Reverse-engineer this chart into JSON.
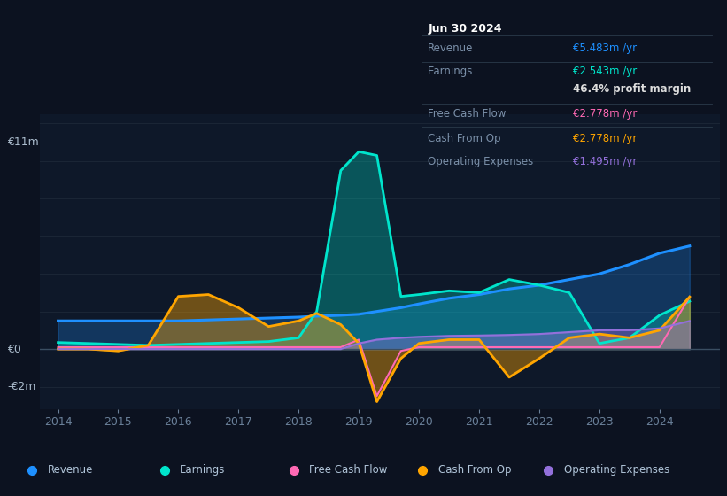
{
  "bg_color": "#0c1220",
  "plot_bg_color": "#0e1829",
  "grid_color": "#1a2535",
  "years": [
    2014,
    2014.5,
    2015,
    2015.5,
    2016,
    2016.5,
    2017,
    2017.5,
    2018,
    2018.3,
    2018.7,
    2019,
    2019.3,
    2019.7,
    2020,
    2020.5,
    2021,
    2021.5,
    2022,
    2022.5,
    2023,
    2023.5,
    2024,
    2024.5
  ],
  "revenue": [
    1.5,
    1.5,
    1.5,
    1.5,
    1.5,
    1.55,
    1.6,
    1.65,
    1.7,
    1.75,
    1.8,
    1.85,
    2.0,
    2.2,
    2.4,
    2.7,
    2.9,
    3.2,
    3.4,
    3.7,
    4.0,
    4.5,
    5.1,
    5.483
  ],
  "earnings": [
    0.35,
    0.3,
    0.25,
    0.2,
    0.25,
    0.3,
    0.35,
    0.4,
    0.6,
    2.0,
    9.5,
    10.5,
    10.3,
    2.8,
    2.9,
    3.1,
    3.0,
    3.7,
    3.4,
    3.0,
    0.3,
    0.6,
    1.8,
    2.543
  ],
  "free_cash_flow": [
    0.1,
    0.1,
    0.1,
    0.1,
    0.1,
    0.1,
    0.1,
    0.1,
    0.1,
    0.1,
    0.1,
    0.5,
    -2.5,
    -0.1,
    0.1,
    0.1,
    0.1,
    0.1,
    0.1,
    0.1,
    0.1,
    0.1,
    0.1,
    2.778
  ],
  "cash_from_op": [
    0.0,
    0.0,
    -0.1,
    0.2,
    2.8,
    2.9,
    2.2,
    1.2,
    1.5,
    1.9,
    1.3,
    0.3,
    -2.8,
    -0.5,
    0.3,
    0.5,
    0.5,
    -1.5,
    -0.5,
    0.6,
    0.8,
    0.6,
    1.0,
    2.778
  ],
  "op_expenses": [
    0.0,
    0.0,
    0.0,
    0.0,
    0.0,
    0.0,
    0.0,
    0.0,
    0.0,
    0.0,
    0.0,
    0.3,
    0.5,
    0.6,
    0.65,
    0.7,
    0.72,
    0.75,
    0.8,
    0.9,
    1.0,
    1.0,
    1.1,
    1.495
  ],
  "revenue_color": "#1e90ff",
  "earnings_color": "#00e5cc",
  "fcf_color": "#ff69b4",
  "cfop_color": "#ffa500",
  "opex_color": "#9370db",
  "ylim_min": -3.2,
  "ylim_max": 12.5,
  "xlim_min": 2013.7,
  "xlim_max": 2025.0,
  "xticks": [
    2014,
    2015,
    2016,
    2017,
    2018,
    2019,
    2020,
    2021,
    2022,
    2023,
    2024
  ],
  "y_label_11m": "€11m",
  "y_label_0": "€0",
  "y_label_neg2m": "-€2m",
  "y_val_11": 11,
  "y_val_0": 0,
  "y_val_neg2": -2,
  "title_date": "Jun 30 2024",
  "table_rows": [
    {
      "label": "Revenue",
      "value": "€5.483m /yr",
      "vcolor": "#1e90ff"
    },
    {
      "label": "Earnings",
      "value": "€2.543m /yr",
      "vcolor": "#00e5cc"
    },
    {
      "label": "",
      "value": "46.4% profit margin",
      "vcolor": "#dddddd"
    },
    {
      "label": "Free Cash Flow",
      "value": "€2.778m /yr",
      "vcolor": "#ff69b4"
    },
    {
      "label": "Cash From Op",
      "value": "€2.778m /yr",
      "vcolor": "#ffa500"
    },
    {
      "label": "Operating Expenses",
      "value": "€1.495m /yr",
      "vcolor": "#9370db"
    }
  ],
  "legend": [
    {
      "label": "Revenue",
      "color": "#1e90ff"
    },
    {
      "label": "Earnings",
      "color": "#00e5cc"
    },
    {
      "label": "Free Cash Flow",
      "color": "#ff69b4"
    },
    {
      "label": "Cash From Op",
      "color": "#ffa500"
    },
    {
      "label": "Operating Expenses",
      "color": "#9370db"
    }
  ]
}
